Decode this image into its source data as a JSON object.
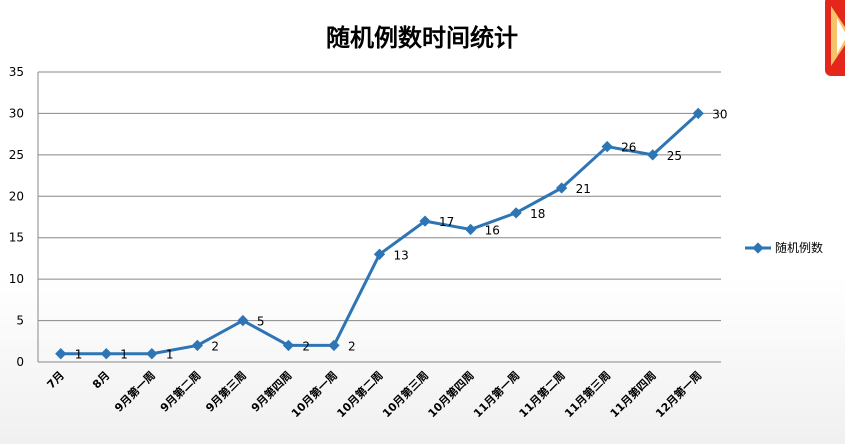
{
  "chart_data": {
    "type": "line",
    "title": "随机例数时间统计",
    "categories": [
      "7月",
      "8月",
      "9月第一周",
      "9月第二周",
      "9月第三周",
      "9月第四周",
      "10月第一周",
      "10月第二周",
      "10月第三周",
      "10月第四周",
      "11月第一周",
      "11月第二周",
      "11月第三周",
      "11月第四周",
      "12月第一周"
    ],
    "series": [
      {
        "name": "随机例数",
        "values": [
          1,
          1,
          1,
          2,
          5,
          2,
          2,
          13,
          17,
          16,
          18,
          21,
          26,
          25,
          30
        ]
      }
    ],
    "ylim": [
      0,
      35
    ],
    "yticks": [
      0,
      5,
      10,
      15,
      20,
      25,
      30,
      35
    ],
    "grid": true,
    "legend": "right",
    "data_labels": true,
    "line_color": "#2e75b6"
  }
}
